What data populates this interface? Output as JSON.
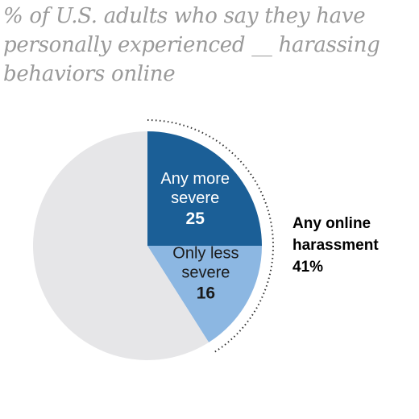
{
  "chart_data": {
    "type": "pie",
    "title": "% of U.S. adults who say they have personally experienced __ harassing behaviors online",
    "slices": [
      {
        "label": [
          "Any more",
          "severe"
        ],
        "value": 25,
        "color": "#1b5f97"
      },
      {
        "label": [
          "Only less",
          "severe"
        ],
        "value": 16,
        "color": "#8cb7e2"
      },
      {
        "label": [],
        "value": 59,
        "color": "#e6e6e8"
      }
    ],
    "callout": {
      "lines": [
        "Any online",
        "harassment"
      ],
      "value": "41%"
    }
  }
}
